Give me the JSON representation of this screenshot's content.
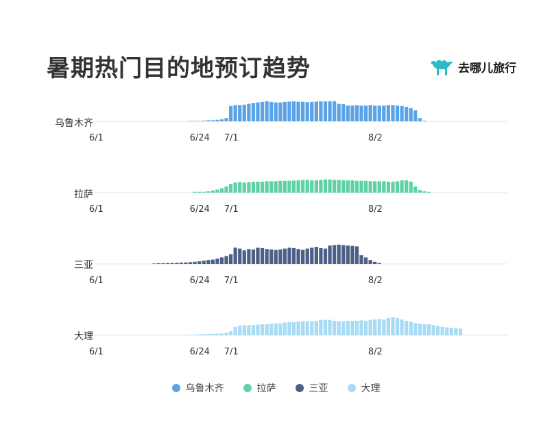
{
  "title": "暑期热门目的地预订趋势",
  "brand": {
    "name": "去哪儿旅行",
    "icon": "camel-icon",
    "color": "#2bbcc4"
  },
  "chart_data": {
    "type": "bar",
    "grid": false,
    "legend_position": "bottom-center",
    "x_unit": "day",
    "x_range": [
      "6/1",
      "8/31"
    ],
    "tick_labels": [
      "6/1",
      "6/24",
      "7/1",
      "8/2"
    ],
    "tick_days": [
      0,
      23,
      30,
      62
    ],
    "series": [
      {
        "name": "乌鲁木齐",
        "color": "#5aa3e6",
        "values": [
          0,
          0,
          0,
          0,
          0,
          0,
          0,
          0,
          0,
          0,
          0,
          0,
          0,
          0,
          0,
          0,
          0,
          0,
          0,
          0,
          0,
          0.02,
          0.02,
          0.02,
          0.03,
          0.05,
          0.05,
          0.07,
          0.09,
          0.15,
          0.7,
          0.74,
          0.74,
          0.76,
          0.8,
          0.84,
          0.86,
          0.88,
          0.92,
          0.88,
          0.86,
          0.86,
          0.88,
          0.9,
          0.91,
          0.89,
          0.89,
          0.87,
          0.88,
          0.9,
          0.91,
          0.91,
          0.92,
          0.92,
          0.8,
          0.78,
          0.72,
          0.72,
          0.74,
          0.72,
          0.72,
          0.74,
          0.72,
          0.72,
          0.72,
          0.74,
          0.74,
          0.72,
          0.7,
          0.66,
          0.6,
          0.5,
          0.15,
          0.03,
          0,
          0,
          0,
          0,
          0,
          0,
          0,
          0,
          0,
          0,
          0,
          0,
          0,
          0,
          0,
          0,
          0,
          0
        ]
      },
      {
        "name": "拉萨",
        "color": "#5fd1a5",
        "values": [
          0,
          0,
          0,
          0,
          0,
          0,
          0,
          0,
          0,
          0,
          0,
          0,
          0,
          0,
          0,
          0,
          0,
          0,
          0,
          0,
          0,
          0,
          0.04,
          0.04,
          0.04,
          0.06,
          0.1,
          0.14,
          0.2,
          0.28,
          0.4,
          0.46,
          0.48,
          0.46,
          0.48,
          0.5,
          0.5,
          0.5,
          0.52,
          0.52,
          0.52,
          0.54,
          0.54,
          0.54,
          0.55,
          0.56,
          0.58,
          0.58,
          0.56,
          0.56,
          0.58,
          0.6,
          0.6,
          0.58,
          0.58,
          0.56,
          0.56,
          0.56,
          0.54,
          0.54,
          0.54,
          0.52,
          0.52,
          0.52,
          0.52,
          0.5,
          0.5,
          0.52,
          0.56,
          0.56,
          0.5,
          0.28,
          0.12,
          0.06,
          0.04,
          0,
          0,
          0,
          0,
          0,
          0,
          0,
          0,
          0,
          0,
          0,
          0,
          0,
          0,
          0,
          0,
          0
        ]
      },
      {
        "name": "三亚",
        "color": "#4c5f87",
        "values": [
          0,
          0,
          0,
          0,
          0,
          0,
          0,
          0,
          0,
          0,
          0,
          0,
          0,
          0.02,
          0.03,
          0.03,
          0.04,
          0.04,
          0.05,
          0.06,
          0.07,
          0.08,
          0.1,
          0.12,
          0.15,
          0.18,
          0.2,
          0.24,
          0.3,
          0.36,
          0.44,
          0.74,
          0.7,
          0.62,
          0.68,
          0.66,
          0.74,
          0.72,
          0.68,
          0.66,
          0.64,
          0.66,
          0.7,
          0.74,
          0.72,
          0.68,
          0.64,
          0.7,
          0.74,
          0.78,
          0.72,
          0.7,
          0.84,
          0.86,
          0.88,
          0.86,
          0.84,
          0.82,
          0.8,
          0.4,
          0.3,
          0.18,
          0.1,
          0.04,
          0,
          0,
          0,
          0,
          0,
          0,
          0,
          0,
          0,
          0,
          0,
          0,
          0,
          0,
          0,
          0,
          0,
          0,
          0,
          0,
          0,
          0,
          0,
          0,
          0,
          0,
          0,
          0
        ]
      },
      {
        "name": "大理",
        "color": "#a8dbf4",
        "values": [
          0,
          0,
          0,
          0,
          0,
          0,
          0,
          0,
          0,
          0,
          0,
          0,
          0,
          0,
          0,
          0,
          0,
          0,
          0,
          0,
          0,
          0.02,
          0.03,
          0.04,
          0.05,
          0.06,
          0.07,
          0.08,
          0.08,
          0.12,
          0.18,
          0.38,
          0.44,
          0.46,
          0.46,
          0.46,
          0.48,
          0.5,
          0.5,
          0.52,
          0.54,
          0.54,
          0.58,
          0.6,
          0.6,
          0.62,
          0.64,
          0.64,
          0.64,
          0.66,
          0.7,
          0.7,
          0.7,
          0.66,
          0.64,
          0.64,
          0.66,
          0.66,
          0.66,
          0.68,
          0.66,
          0.7,
          0.72,
          0.74,
          0.72,
          0.78,
          0.82,
          0.78,
          0.72,
          0.66,
          0.62,
          0.56,
          0.52,
          0.5,
          0.5,
          0.46,
          0.42,
          0.38,
          0.36,
          0.34,
          0.32,
          0.3,
          0,
          0,
          0,
          0,
          0,
          0,
          0,
          0,
          0,
          0
        ]
      }
    ]
  }
}
